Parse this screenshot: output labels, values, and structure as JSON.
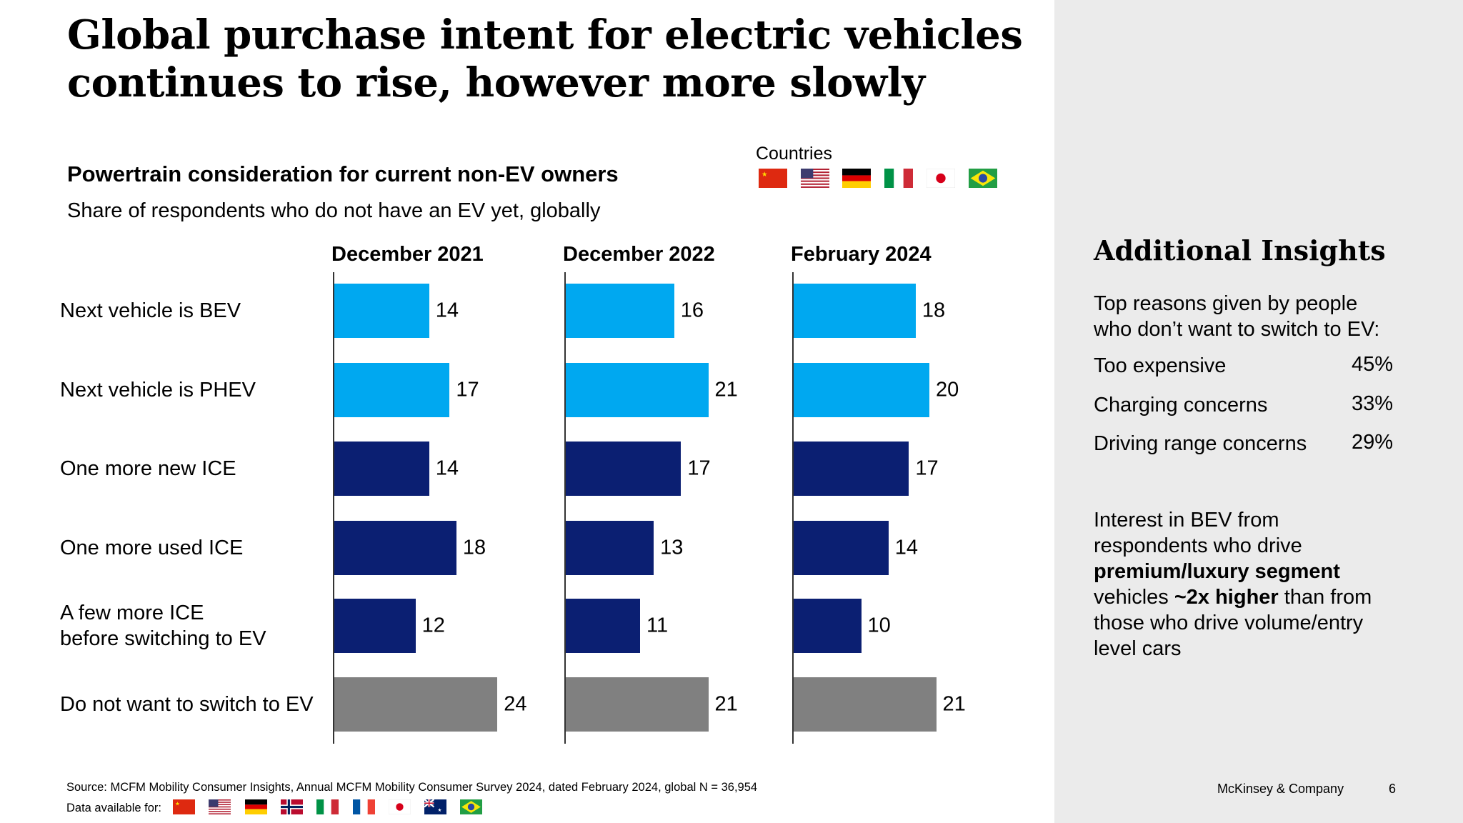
{
  "title_lines": [
    "Global purchase intent for electric vehicles",
    "continues to rise, however more slowly"
  ],
  "chart_data": {
    "type": "bar",
    "orientation": "horizontal",
    "title": "Powertrain consideration for current non-EV owners",
    "subtitle": "Share of respondents who do not have an EV yet, globally",
    "categories": [
      "Next vehicle is BEV",
      "Next vehicle is PHEV",
      "One more new ICE",
      "One more used ICE",
      "A few more ICE\nbefore switching to EV",
      "Do not want to switch to EV"
    ],
    "category_colors": [
      "#00a8f0",
      "#00a8f0",
      "#0b1f72",
      "#0b1f72",
      "#0b1f72",
      "#808080"
    ],
    "series": [
      {
        "name": "December 2021",
        "values": [
          14,
          17,
          14,
          18,
          12,
          24
        ]
      },
      {
        "name": "December 2022",
        "values": [
          16,
          21,
          17,
          13,
          11,
          21
        ]
      },
      {
        "name": "February 2024",
        "values": [
          18,
          20,
          17,
          14,
          10,
          21
        ]
      }
    ],
    "grid": false
  },
  "countries": {
    "label": "Countries",
    "flags": [
      "china-flag-icon",
      "usa-flag-icon",
      "germany-flag-icon",
      "italy-flag-icon",
      "japan-flag-icon",
      "brazil-flag-icon"
    ]
  },
  "insights": {
    "title": "Additional Insights",
    "intro": [
      "Top reasons given by people",
      "who don’t want to switch to EV:"
    ],
    "reasons": [
      {
        "label": "Too expensive",
        "value": "45%"
      },
      {
        "label": "Charging concerns",
        "value": "33%"
      },
      {
        "label": "Driving range concerns",
        "value": "29%"
      }
    ],
    "para": {
      "l1": "Interest in BEV from",
      "l2": "respondents who drive",
      "l3": "premium/luxury segment",
      "l4a": "vehicles ",
      "l4b": "~2x higher",
      "l4c": " than from",
      "l5": "those who drive volume/entry",
      "l6": "level cars"
    }
  },
  "footer": {
    "source": "Source: MCFM Mobility Consumer Insights, Annual MCFM Mobility Consumer Survey 2024, dated February 2024, global N = 36,954",
    "available_label": "Data available for:",
    "available_flags": [
      "china-flag-icon",
      "usa-flag-icon",
      "germany-flag-icon",
      "norway-flag-icon",
      "italy-flag-icon",
      "france-flag-icon",
      "japan-flag-icon",
      "australia-flag-icon",
      "brazil-flag-icon"
    ],
    "brand": "McKinsey & Company",
    "page": "6"
  }
}
